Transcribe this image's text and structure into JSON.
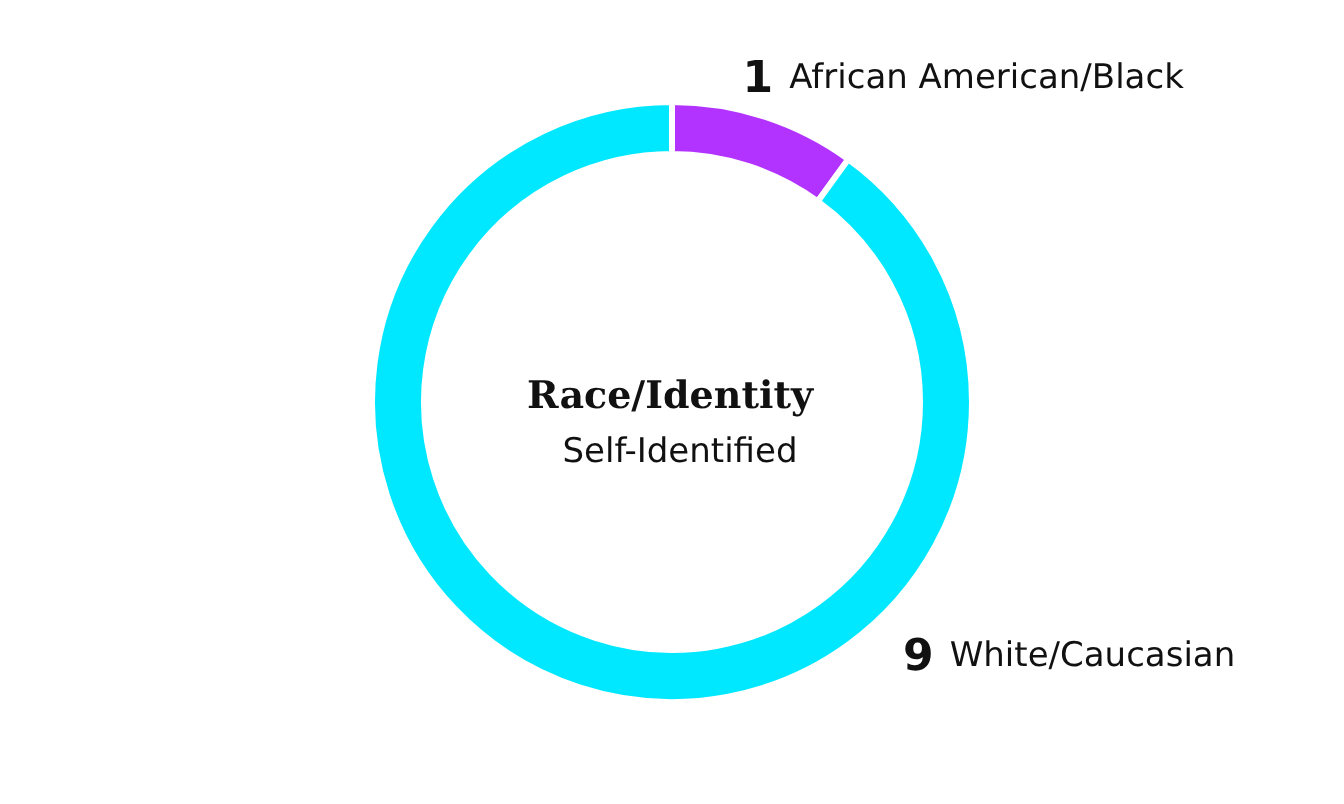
{
  "chart_data": {
    "type": "donut",
    "title": "Race/Identity",
    "subtitle": "Self-Identified",
    "categories": [
      "African American/Black",
      "White/Caucasian"
    ],
    "values": [
      1,
      9
    ],
    "colors": [
      "#b233ff",
      "#00e8ff"
    ],
    "data_labels": true
  }
}
